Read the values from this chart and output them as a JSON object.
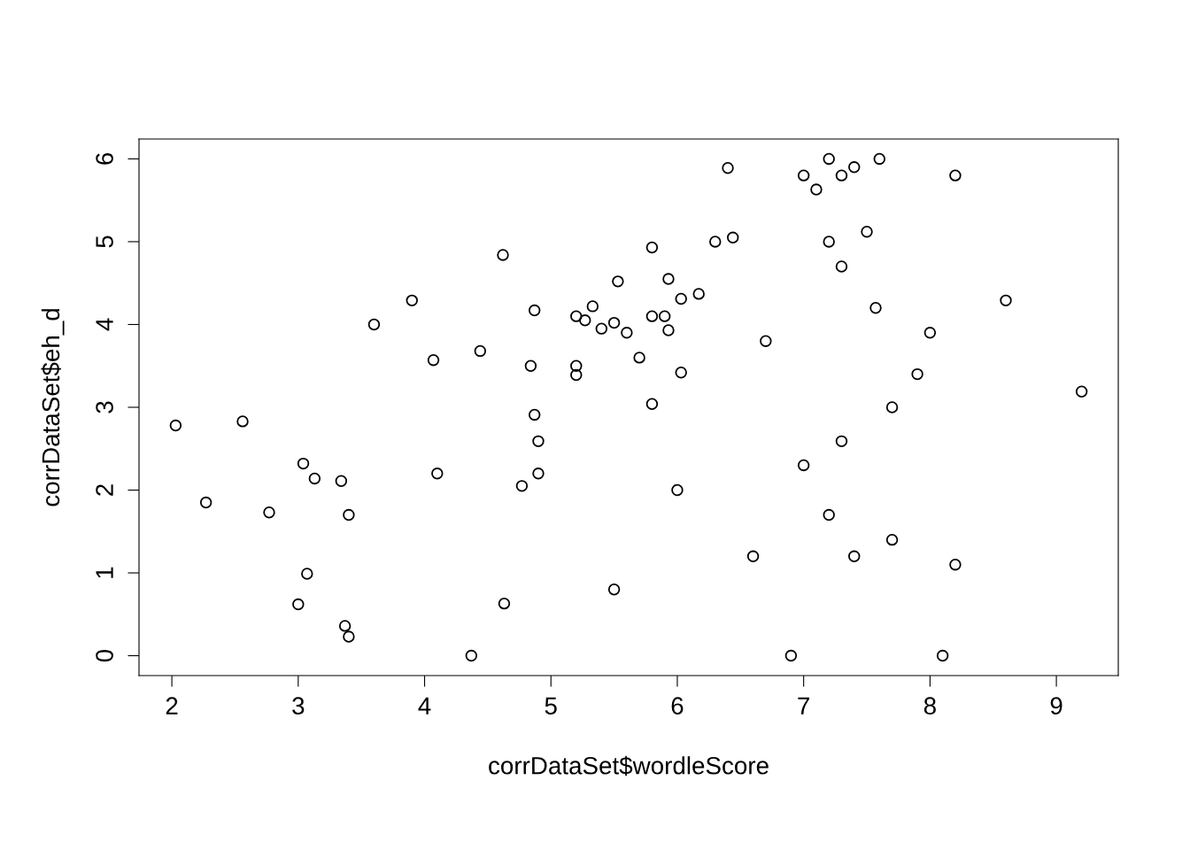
{
  "chart_data": {
    "type": "scatter",
    "xlabel": "corrDataSet$wordleScore",
    "ylabel": "corrDataSet$eh_d",
    "x": [
      2.03,
      2.27,
      2.56,
      2.77,
      3.04,
      3.13,
      3.34,
      3.4,
      3.07,
      3.0,
      3.37,
      3.4,
      3.6,
      3.9,
      4.07,
      4.1,
      4.44,
      4.37,
      4.62,
      4.63,
      4.77,
      4.84,
      4.87,
      4.87,
      4.9,
      4.9,
      5.2,
      5.2,
      5.2,
      5.27,
      5.33,
      5.4,
      5.5,
      5.5,
      5.53,
      5.6,
      5.7,
      5.8,
      5.8,
      5.8,
      5.9,
      5.93,
      5.93,
      6.0,
      6.03,
      6.03,
      6.17,
      6.3,
      6.4,
      6.44,
      6.6,
      6.7,
      6.9,
      7.0,
      7.0,
      7.1,
      7.2,
      7.2,
      7.2,
      7.3,
      7.3,
      7.3,
      7.4,
      7.4,
      7.5,
      7.57,
      7.6,
      7.7,
      7.7,
      7.9,
      8.0,
      8.1,
      8.2,
      8.2,
      8.6,
      9.2
    ],
    "values": [
      2.78,
      1.85,
      2.83,
      1.73,
      2.32,
      2.14,
      2.11,
      1.7,
      0.99,
      0.62,
      0.36,
      0.23,
      4.0,
      4.29,
      3.57,
      2.2,
      3.68,
      0,
      4.84,
      0.63,
      2.05,
      3.5,
      4.17,
      2.91,
      2.59,
      2.2,
      4.1,
      3.5,
      3.39,
      4.05,
      4.22,
      3.95,
      4.02,
      0.8,
      4.52,
      3.9,
      3.6,
      4.93,
      4.1,
      3.04,
      4.1,
      4.55,
      3.93,
      2.0,
      4.31,
      3.42,
      4.37,
      5.0,
      5.89,
      5.05,
      1.2,
      3.8,
      0,
      5.8,
      2.3,
      5.63,
      6.0,
      5.0,
      1.7,
      5.8,
      4.7,
      2.59,
      5.9,
      1.2,
      5.12,
      4.2,
      6.0,
      3.0,
      1.4,
      3.4,
      3.9,
      0,
      5.8,
      1.1,
      4.29,
      3.19
    ],
    "color": "#000000",
    "marker": "circle",
    "xlim": [
      1.74,
      9.49
    ],
    "ylim": [
      -0.24,
      6.24
    ],
    "xticks": [
      2,
      3,
      4,
      5,
      6,
      7,
      8,
      9
    ],
    "yticks": [
      0,
      1,
      2,
      3,
      4,
      5,
      6
    ],
    "grid": false,
    "legend": false
  }
}
